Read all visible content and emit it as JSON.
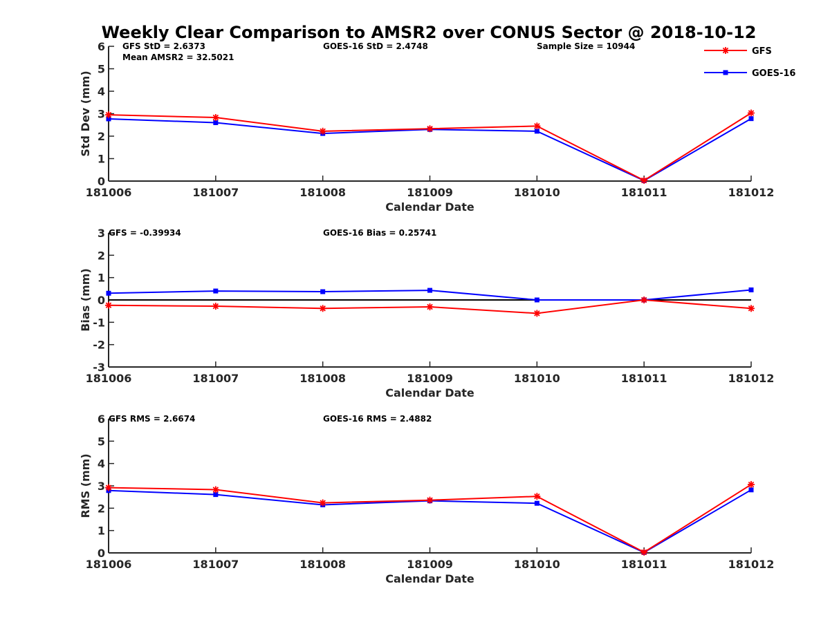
{
  "figure": {
    "title": "Weekly Clear Comparison to AMSR2 over CONUS Sector @ 2018-10-12"
  },
  "legend": {
    "placement": "top-right",
    "entries": [
      {
        "label": "GFS",
        "color": "#ff0000",
        "marker": "asterisk"
      },
      {
        "label": "GOES-16",
        "color": "#0000ff",
        "marker": "square"
      }
    ]
  },
  "chart_data": [
    {
      "type": "line",
      "title": "",
      "xlabel": "Calendar Date",
      "ylabel": "Std Dev (mm)",
      "ylim": [
        0,
        6
      ],
      "yticks": [
        "0",
        "1",
        "2",
        "3",
        "4",
        "5",
        "6"
      ],
      "categories": [
        "181006",
        "181007",
        "181008",
        "181009",
        "181010",
        "181011",
        "181012"
      ],
      "series": [
        {
          "name": "GFS",
          "color": "#ff0000",
          "marker": "asterisk",
          "values": [
            2.95,
            2.83,
            2.22,
            2.33,
            2.45,
            0.03,
            3.03
          ]
        },
        {
          "name": "GOES-16",
          "color": "#0000ff",
          "marker": "square",
          "values": [
            2.77,
            2.6,
            2.12,
            2.3,
            2.22,
            0.02,
            2.78
          ]
        }
      ],
      "zero_line": false,
      "annotations": [
        {
          "text": "GFS StD = 2.6373"
        },
        {
          "text": "Mean AMSR2 = 32.5021"
        },
        {
          "text": "GOES-16 StD = 2.4748"
        },
        {
          "text": "Sample Size = 10944"
        }
      ]
    },
    {
      "type": "line",
      "title": "",
      "xlabel": "Calendar Date",
      "ylabel": "Bias (mm)",
      "ylim": [
        -3,
        3
      ],
      "yticks": [
        "-3",
        "-2",
        "-1",
        "0",
        "1",
        "2",
        "3"
      ],
      "categories": [
        "181006",
        "181007",
        "181008",
        "181009",
        "181010",
        "181011",
        "181012"
      ],
      "series": [
        {
          "name": "GFS",
          "color": "#ff0000",
          "marker": "asterisk",
          "values": [
            -0.24,
            -0.28,
            -0.38,
            -0.31,
            -0.6,
            0.0,
            -0.38
          ]
        },
        {
          "name": "GOES-16",
          "color": "#0000ff",
          "marker": "square",
          "values": [
            0.3,
            0.4,
            0.37,
            0.43,
            0.0,
            0.0,
            0.45
          ]
        }
      ],
      "zero_line": true,
      "annotations": [
        {
          "text": "GFS = -0.39934"
        },
        {
          "text": "GOES-16 Bias  = 0.25741"
        }
      ]
    },
    {
      "type": "line",
      "title": "",
      "xlabel": "Calendar Date",
      "ylabel": "RMS (mm)",
      "ylim": [
        0,
        6
      ],
      "yticks": [
        "0",
        "1",
        "2",
        "3",
        "4",
        "5",
        "6"
      ],
      "categories": [
        "181006",
        "181007",
        "181008",
        "181009",
        "181010",
        "181011",
        "181012"
      ],
      "series": [
        {
          "name": "GFS",
          "color": "#ff0000",
          "marker": "asterisk",
          "values": [
            2.92,
            2.83,
            2.24,
            2.36,
            2.53,
            0.03,
            3.06
          ]
        },
        {
          "name": "GOES-16",
          "color": "#0000ff",
          "marker": "square",
          "values": [
            2.79,
            2.61,
            2.15,
            2.33,
            2.22,
            0.02,
            2.82
          ]
        }
      ],
      "zero_line": false,
      "annotations": [
        {
          "text": "GFS RMS = 2.6674"
        },
        {
          "text": "GOES-16 RMS = 2.4882"
        }
      ]
    }
  ]
}
